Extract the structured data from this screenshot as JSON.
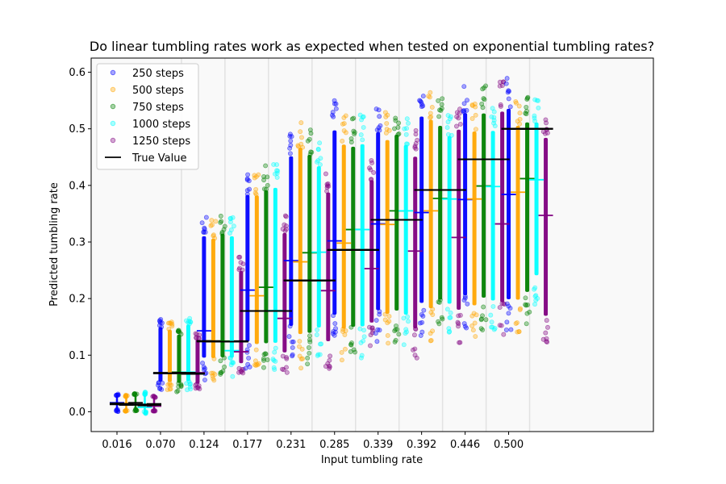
{
  "chart_data": {
    "type": "scatter",
    "title": "Do linear tumbling rates work as expected when tested on exponential tumbling rates?",
    "xlabel": "Input tumbling rate",
    "ylabel": "Predicted tumbling rate",
    "x_tick_labels": [
      "0.016",
      "0.070",
      "0.124",
      "0.177",
      "0.231",
      "0.285",
      "0.339",
      "0.392",
      "0.446",
      "0.500"
    ],
    "y_ticks": [
      "0.0",
      "0.1",
      "0.2",
      "0.3",
      "0.4",
      "0.5",
      "0.6"
    ],
    "ylim": [
      -0.035,
      0.625
    ],
    "grid": "vertical group separators",
    "legend_position": "top-left",
    "series": [
      {
        "name": "250 steps",
        "color": "#0000ff"
      },
      {
        "name": "500 steps",
        "color": "#ffa500"
      },
      {
        "name": "750 steps",
        "color": "#008000"
      },
      {
        "name": "1000 steps",
        "color": "#00ffff"
      },
      {
        "name": "1250 steps",
        "color": "#800080"
      }
    ],
    "true_value_label": "True Value",
    "groups": [
      {
        "x": 0.016,
        "values": [
          [
            0.016,
            0.015,
            0.013,
            0.008,
            0.01
          ],
          [
            0.015,
            0.014,
            0.013,
            0.012,
            0.014
          ],
          [
            0.015,
            0.014,
            0.016,
            0.013,
            0.012
          ],
          [
            0.014,
            0.012,
            0.013,
            0.012,
            0.012
          ],
          [
            0.013,
            0.012,
            0.012,
            0.011,
            0.012
          ]
        ],
        "ranges": [
          [
            0.0,
            0.032
          ],
          [
            0.0,
            0.03
          ],
          [
            0.0,
            0.033
          ],
          [
            -0.005,
            0.035
          ],
          [
            0.0,
            0.028
          ]
        ]
      },
      {
        "x": 0.07,
        "values": [
          [
            0.068,
            0.068,
            0.07,
            0.07,
            0.069
          ],
          [
            0.069,
            0.068,
            0.068,
            0.069,
            0.068
          ],
          [
            0.068,
            0.068,
            0.069,
            0.068,
            0.067
          ],
          [
            0.068,
            0.068,
            0.069,
            0.067,
            0.067
          ],
          [
            0.068,
            0.068,
            0.068,
            0.067,
            0.068
          ]
        ],
        "ranges": [
          [
            0.035,
            0.165
          ],
          [
            0.035,
            0.16
          ],
          [
            0.035,
            0.15
          ],
          [
            0.035,
            0.17
          ],
          [
            0.035,
            0.14
          ]
        ]
      },
      {
        "x": 0.124,
        "values": [
          [
            0.143,
            0.125,
            0.125,
            0.108,
            0.106
          ],
          [
            0.125,
            0.124,
            0.124,
            0.124,
            0.124
          ],
          [
            0.125,
            0.125,
            0.124,
            0.124,
            0.124
          ],
          [
            0.125,
            0.124,
            0.124,
            0.124,
            0.125
          ],
          [
            0.124,
            0.124,
            0.124,
            0.124,
            0.124
          ]
        ],
        "ranges": [
          [
            0.055,
            0.345
          ],
          [
            0.055,
            0.34
          ],
          [
            0.055,
            0.35
          ],
          [
            0.055,
            0.345
          ],
          [
            0.055,
            0.275
          ]
        ]
      },
      {
        "x": 0.177,
        "values": [
          [
            0.215,
            0.205,
            0.22,
            0.179,
            0.165
          ],
          [
            0.178,
            0.178,
            0.178,
            0.178,
            0.178
          ],
          [
            0.178,
            0.178,
            0.178,
            0.178,
            0.178
          ],
          [
            0.178,
            0.178,
            0.178,
            0.178,
            0.178
          ],
          [
            0.178,
            0.178,
            0.178,
            0.178,
            0.178
          ]
        ],
        "ranges": [
          [
            0.075,
            0.425
          ],
          [
            0.07,
            0.425
          ],
          [
            0.07,
            0.435
          ],
          [
            0.07,
            0.44
          ],
          [
            0.065,
            0.35
          ]
        ]
      },
      {
        "x": 0.231,
        "values": [
          [
            0.267,
            0.265,
            0.281,
            0.282,
            0.214
          ],
          [
            0.232,
            0.232,
            0.232,
            0.232,
            0.232
          ],
          [
            0.232,
            0.232,
            0.232,
            0.232,
            0.232
          ],
          [
            0.232,
            0.232,
            0.232,
            0.232,
            0.232
          ],
          [
            0.232,
            0.232,
            0.232,
            0.232,
            0.232
          ]
        ],
        "ranges": [
          [
            0.095,
            0.5
          ],
          [
            0.075,
            0.52
          ],
          [
            0.08,
            0.505
          ],
          [
            0.095,
            0.48
          ],
          [
            0.075,
            0.43
          ]
        ]
      },
      {
        "x": 0.285,
        "values": [
          [
            0.302,
            0.298,
            0.322,
            0.322,
            0.253
          ],
          [
            0.286,
            0.286,
            0.286,
            0.286,
            0.286
          ],
          [
            0.286,
            0.286,
            0.286,
            0.286,
            0.286
          ],
          [
            0.286,
            0.286,
            0.286,
            0.286,
            0.286
          ],
          [
            0.286,
            0.286,
            0.286,
            0.286,
            0.286
          ]
        ],
        "ranges": [
          [
            0.11,
            0.55
          ],
          [
            0.085,
            0.525
          ],
          [
            0.09,
            0.52
          ],
          [
            0.09,
            0.525
          ],
          [
            0.11,
            0.45
          ]
        ]
      },
      {
        "x": 0.339,
        "values": [
          [
            0.332,
            0.331,
            0.355,
            0.355,
            0.284
          ],
          [
            0.339,
            0.339,
            0.339,
            0.339,
            0.339
          ],
          [
            0.339,
            0.339,
            0.339,
            0.339,
            0.339
          ],
          [
            0.339,
            0.339,
            0.339,
            0.339,
            0.339
          ],
          [
            0.339,
            0.339,
            0.339,
            0.339,
            0.339
          ]
        ],
        "ranges": [
          [
            0.12,
            0.545
          ],
          [
            0.115,
            0.53
          ],
          [
            0.12,
            0.54
          ],
          [
            0.115,
            0.52
          ],
          [
            0.09,
            0.5
          ]
        ]
      },
      {
        "x": 0.392,
        "values": [
          [
            0.352,
            0.355,
            0.377,
            0.376,
            0.308
          ],
          [
            0.392,
            0.392,
            0.392,
            0.392,
            0.392
          ],
          [
            0.392,
            0.392,
            0.392,
            0.392,
            0.392
          ],
          [
            0.392,
            0.392,
            0.392,
            0.392,
            0.392
          ],
          [
            0.392,
            0.392,
            0.392,
            0.392,
            0.392
          ]
        ],
        "ranges": [
          [
            0.13,
            0.575
          ],
          [
            0.12,
            0.57
          ],
          [
            0.14,
            0.555
          ],
          [
            0.135,
            0.535
          ],
          [
            0.12,
            0.55
          ]
        ]
      },
      {
        "x": 0.446,
        "values": [
          [
            0.375,
            0.376,
            0.399,
            0.398,
            0.332
          ],
          [
            0.446,
            0.446,
            0.446,
            0.446,
            0.446
          ],
          [
            0.446,
            0.446,
            0.446,
            0.446,
            0.446
          ],
          [
            0.446,
            0.446,
            0.446,
            0.446,
            0.446
          ],
          [
            0.446,
            0.446,
            0.446,
            0.446,
            0.446
          ]
        ],
        "ranges": [
          [
            0.145,
            0.58
          ],
          [
            0.13,
            0.545
          ],
          [
            0.14,
            0.58
          ],
          [
            0.14,
            0.545
          ],
          [
            0.13,
            0.585
          ]
        ]
      },
      {
        "x": 0.5,
        "values": [
          [
            0.384,
            0.388,
            0.412,
            0.41,
            0.347
          ],
          [
            0.5,
            0.5,
            0.5,
            0.5,
            0.5
          ],
          [
            0.5,
            0.5,
            0.5,
            0.5,
            0.5
          ],
          [
            0.5,
            0.5,
            0.5,
            0.5,
            0.5
          ],
          [
            0.5,
            0.5,
            0.5,
            0.5,
            0.5
          ]
        ],
        "ranges": [
          [
            0.135,
            0.59
          ],
          [
            0.14,
            0.555
          ],
          [
            0.155,
            0.56
          ],
          [
            0.19,
            0.555
          ],
          [
            0.11,
            0.535
          ]
        ]
      }
    ]
  }
}
